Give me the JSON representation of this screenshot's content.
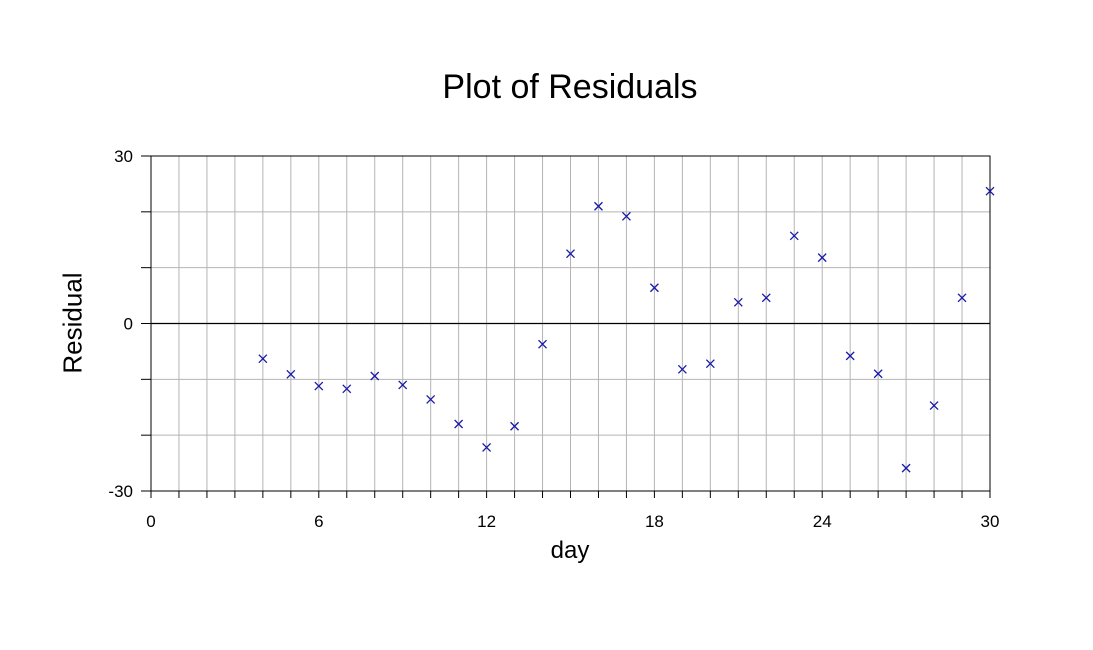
{
  "chart_data": {
    "type": "scatter",
    "title": "Plot of Residuals",
    "xlabel": "day",
    "ylabel": "Residual",
    "xlim": [
      0,
      30
    ],
    "ylim": [
      -30,
      30
    ],
    "xticks": [
      0,
      6,
      12,
      18,
      24,
      30
    ],
    "yticks": [
      30,
      0,
      -30
    ],
    "grid": true,
    "marker": "x",
    "marker_color": "#1a1aa6",
    "series": [
      {
        "x": [
          4,
          5,
          6,
          7,
          8,
          9,
          10,
          11,
          12,
          13,
          14,
          15,
          16,
          17,
          18,
          19,
          20,
          21,
          22,
          23,
          24,
          25,
          26,
          27,
          28,
          29,
          30
        ],
        "y": [
          -6.3,
          -9.1,
          -11.2,
          -11.7,
          -9.4,
          -11.0,
          -13.6,
          -18.0,
          -22.2,
          -18.4,
          -3.7,
          12.5,
          21.0,
          19.2,
          6.4,
          -8.2,
          -7.2,
          3.8,
          4.6,
          15.7,
          11.8,
          -5.8,
          -9.0,
          -25.9,
          -14.7,
          4.6,
          23.7
        ]
      }
    ]
  }
}
